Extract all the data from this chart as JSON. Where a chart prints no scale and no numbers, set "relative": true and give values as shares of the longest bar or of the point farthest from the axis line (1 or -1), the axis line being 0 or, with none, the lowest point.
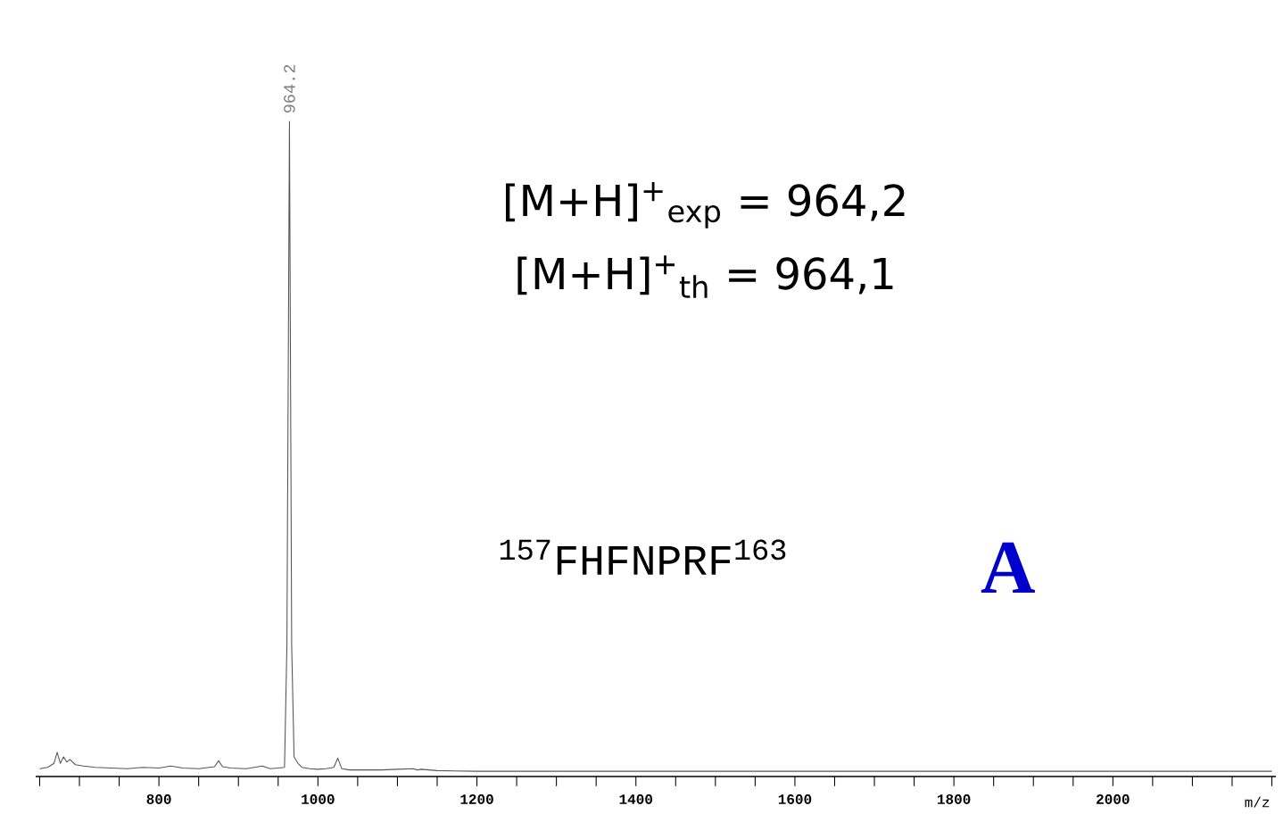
{
  "chart_data": {
    "type": "line",
    "relative": true,
    "color": "#555555",
    "xlabel": "m/z",
    "x": [
      650,
      660,
      668,
      672,
      676,
      680,
      684,
      688,
      695,
      705,
      720,
      740,
      760,
      780,
      800,
      815,
      830,
      850,
      870,
      875,
      880,
      890,
      910,
      930,
      940,
      950,
      958,
      961,
      964.2,
      967,
      970,
      975,
      980,
      990,
      1000,
      1010,
      1020,
      1025,
      1030,
      1040,
      1060,
      1080,
      1100,
      1120,
      1125,
      1130,
      1150,
      1200,
      1300,
      1400,
      1500,
      1600,
      1700,
      1800,
      1900,
      2000,
      2100,
      2200
    ],
    "values": [
      0.012,
      0.014,
      0.02,
      0.037,
      0.02,
      0.03,
      0.022,
      0.026,
      0.018,
      0.016,
      0.014,
      0.013,
      0.012,
      0.014,
      0.013,
      0.016,
      0.013,
      0.012,
      0.015,
      0.024,
      0.015,
      0.013,
      0.012,
      0.016,
      0.012,
      0.013,
      0.014,
      0.2,
      1,
      0.2,
      0.03,
      0.02,
      0.014,
      0.012,
      0.011,
      0.012,
      0.014,
      0.028,
      0.012,
      0.01,
      0.01,
      0.01,
      0.011,
      0.012,
      0.01,
      0.011,
      0.009,
      0.008,
      0.008,
      0.008,
      0.008,
      0.008,
      0.008,
      0.008,
      0.008,
      0.008,
      0.008,
      0.008
    ],
    "xlim": [
      645,
      2205
    ],
    "xticks": [
      {
        "value": 650,
        "label": null
      },
      {
        "value": 700,
        "label": null
      },
      {
        "value": 750,
        "label": null
      },
      800,
      {
        "value": 850,
        "label": null
      },
      {
        "value": 900,
        "label": null
      },
      {
        "value": 950,
        "label": null
      },
      1000,
      {
        "value": 1050,
        "label": null
      },
      {
        "value": 1100,
        "label": null
      },
      {
        "value": 1150,
        "label": null
      },
      1200,
      {
        "value": 1250,
        "label": null
      },
      {
        "value": 1300,
        "label": null
      },
      {
        "value": 1350,
        "label": null
      },
      1400,
      {
        "value": 1450,
        "label": null
      },
      {
        "value": 1500,
        "label": null
      },
      {
        "value": 1550,
        "label": null
      },
      1600,
      {
        "value": 1650,
        "label": null
      },
      {
        "value": 1700,
        "label": null
      },
      {
        "value": 1750,
        "label": null
      },
      1800,
      {
        "value": 1850,
        "label": null
      },
      {
        "value": 1900,
        "label": null
      },
      {
        "value": 1950,
        "label": null
      },
      2000,
      {
        "value": 2050,
        "label": null
      },
      {
        "value": 2100,
        "label": null
      },
      {
        "value": 2150,
        "label": null
      },
      {
        "value": 2200,
        "label": null
      }
    ],
    "annotations": [
      {
        "text": "964.2",
        "x": 964.2,
        "y": 1
      },
      "[M+H]$^{+}$$_{exp}$ = 964,2",
      "[M+H]$^{+}$$_{th}$  = 964,1",
      "$^{157}$FHFNPRF$^{163}$",
      "A"
    ]
  }
}
